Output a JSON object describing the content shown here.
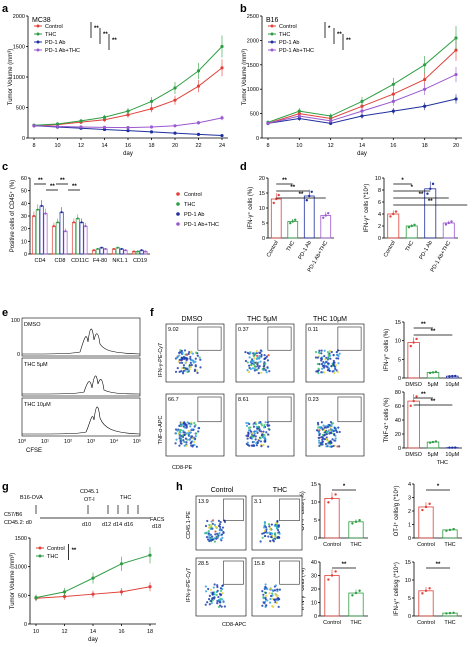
{
  "colors": {
    "control": "#e0413a",
    "thc": "#2e9e44",
    "pd1": "#1f2f9e",
    "pd1thc": "#9b59d0"
  },
  "chart_data": [
    {
      "panel": "a",
      "type": "line",
      "title": "MC38",
      "xlabel": "day",
      "ylabel": "Tumor Volume (mm³)",
      "x": [
        8,
        10,
        12,
        14,
        16,
        18,
        20,
        22,
        24
      ],
      "ylim": [
        0,
        2000
      ],
      "yticks": [
        0,
        500,
        1000,
        1500,
        2000
      ],
      "series": [
        {
          "name": "Control",
          "color": "#e0413a",
          "values": [
            200,
            220,
            260,
            300,
            380,
            480,
            620,
            850,
            1150
          ]
        },
        {
          "name": "THC",
          "color": "#2e9e44",
          "values": [
            210,
            230,
            280,
            340,
            440,
            600,
            820,
            1100,
            1500
          ]
        },
        {
          "name": "PD-1 Ab",
          "color": "#1f2f9e",
          "values": [
            200,
            180,
            160,
            140,
            120,
            100,
            80,
            60,
            40
          ]
        },
        {
          "name": "PD-1 Ab+THC",
          "color": "#9b59d0",
          "values": [
            200,
            190,
            180,
            175,
            170,
            180,
            200,
            250,
            330
          ]
        }
      ],
      "significance": [
        "**",
        "**",
        "**"
      ]
    },
    {
      "panel": "b",
      "type": "line",
      "title": "B16",
      "xlabel": "day",
      "ylabel": "Tumor Volume (mm³)",
      "x": [
        8,
        10,
        12,
        14,
        16,
        18,
        20
      ],
      "ylim": [
        0,
        2500
      ],
      "yticks": [
        0,
        500,
        1000,
        1500,
        2000,
        2500
      ],
      "series": [
        {
          "name": "Control",
          "color": "#e0413a",
          "values": [
            300,
            500,
            400,
            650,
            900,
            1200,
            1800
          ]
        },
        {
          "name": "THC",
          "color": "#2e9e44",
          "values": [
            320,
            550,
            450,
            750,
            1100,
            1500,
            2050
          ]
        },
        {
          "name": "PD-1 Ab",
          "color": "#1f2f9e",
          "values": [
            300,
            400,
            300,
            450,
            550,
            650,
            800
          ]
        },
        {
          "name": "PD-1 Ab+THC",
          "color": "#9b59d0",
          "values": [
            300,
            450,
            350,
            550,
            750,
            1000,
            1300
          ]
        }
      ],
      "significance": [
        "*",
        "**",
        "**"
      ]
    },
    {
      "panel": "c",
      "type": "bar",
      "ylabel": "Positive cells of CD45⁺ (%)",
      "categories": [
        "CD4",
        "CD8",
        "CD11C",
        "F4-80",
        "NK1.1",
        "CD19"
      ],
      "ylim": [
        0,
        60
      ],
      "yticks": [
        0,
        10,
        20,
        30,
        40,
        50,
        60
      ],
      "series": [
        {
          "name": "Control",
          "color": "#e0413a",
          "values": [
            30,
            22,
            25,
            3,
            4,
            2
          ]
        },
        {
          "name": "THC",
          "color": "#2e9e44",
          "values": [
            35,
            25,
            28,
            4,
            5,
            2
          ]
        },
        {
          "name": "PD-1 Ab",
          "color": "#1f2f9e",
          "values": [
            38,
            33,
            25,
            5,
            4,
            3
          ]
        },
        {
          "name": "PD-1 Ab+THC",
          "color": "#9b59d0",
          "values": [
            32,
            18,
            22,
            4,
            3,
            2
          ]
        }
      ],
      "significance": [
        "**",
        "**",
        "**",
        "**"
      ]
    },
    {
      "panel": "d1",
      "type": "bar",
      "ylabel": "IFN-γ⁺ cells (%)",
      "categories": [
        "Control",
        "THC",
        "PD-1 Ab",
        "PD-1 Ab+THC"
      ],
      "ylim": [
        0,
        20
      ],
      "yticks": [
        0,
        5,
        10,
        15,
        20
      ],
      "values": [
        13,
        5.5,
        14,
        7.5
      ],
      "significance": [
        "**",
        "**",
        "**"
      ]
    },
    {
      "panel": "d2",
      "type": "bar",
      "ylabel": "IFN-γ⁺ cells (*10⁴)",
      "categories": [
        "Control",
        "THC",
        "PD-1 Ab",
        "PD-1 Ab+THC"
      ],
      "ylim": [
        0,
        10
      ],
      "yticks": [
        0,
        2,
        4,
        6,
        8,
        10
      ],
      "values": [
        4,
        2,
        8.2,
        2.5
      ],
      "significance": [
        "*",
        "*",
        "**",
        "**"
      ]
    },
    {
      "panel": "f1",
      "type": "bar",
      "ylabel": "IFN-γ⁺ cells (%)",
      "categories": [
        "DMSO",
        "5μM",
        "10μM"
      ],
      "ylim": [
        0,
        15
      ],
      "yticks": [
        0,
        5,
        10,
        15
      ],
      "values": [
        9.5,
        1.5,
        0.5
      ],
      "significance": [
        "**",
        "**"
      ]
    },
    {
      "panel": "f2",
      "type": "bar",
      "ylabel": "TNF-α⁺ cells (%)",
      "categories": [
        "DMSO",
        "5μM",
        "10μM"
      ],
      "ylim": [
        0,
        80
      ],
      "yticks": [
        0,
        20,
        40,
        60,
        80
      ],
      "values": [
        67,
        8.5,
        0.5
      ],
      "significance": [
        "**",
        "**"
      ],
      "xgroup": "THC"
    },
    {
      "panel": "g",
      "type": "line",
      "xlabel": "day",
      "ylabel": "Tumor Volume (mm³)",
      "x": [
        10,
        12,
        14,
        16,
        18
      ],
      "ylim": [
        0,
        1500
      ],
      "yticks": [
        0,
        500,
        1000,
        1500
      ],
      "series": [
        {
          "name": "Control",
          "color": "#e0413a",
          "values": [
            450,
            480,
            520,
            560,
            650
          ]
        },
        {
          "name": "THC",
          "color": "#2e9e44",
          "values": [
            460,
            560,
            800,
            1050,
            1200
          ]
        }
      ],
      "significance": [
        "**"
      ]
    },
    {
      "panel": "h1",
      "type": "bar",
      "ylabel": "OT-I⁺ cells (%)",
      "categories": [
        "Control",
        "THC"
      ],
      "ylim": [
        0,
        15
      ],
      "yticks": [
        0,
        5,
        10,
        15
      ],
      "values": [
        11,
        4.5
      ],
      "significance": [
        "*"
      ]
    },
    {
      "panel": "h2",
      "type": "bar",
      "ylabel": "OT-I⁺ cells/g (*10⁴)",
      "categories": [
        "Control",
        "THC"
      ],
      "ylim": [
        0,
        4
      ],
      "yticks": [
        0,
        1,
        2,
        3,
        4
      ],
      "values": [
        2.3,
        0.6
      ],
      "significance": [
        "*"
      ]
    },
    {
      "panel": "h3",
      "type": "bar",
      "ylabel": "IFN-γ⁺ cells (%)",
      "categories": [
        "Control",
        "THC"
      ],
      "ylim": [
        0,
        40
      ],
      "yticks": [
        0,
        10,
        20,
        30,
        40
      ],
      "values": [
        30,
        17
      ],
      "significance": [
        "**"
      ]
    },
    {
      "panel": "h4",
      "type": "bar",
      "ylabel": "IFN-γ⁺ cells/g (*10⁴)",
      "categories": [
        "Control",
        "THC"
      ],
      "ylim": [
        0,
        15
      ],
      "yticks": [
        0,
        5,
        10,
        15
      ],
      "values": [
        7,
        0.8
      ],
      "significance": [
        "**"
      ]
    }
  ],
  "panels": {
    "a": "a",
    "b": "b",
    "c": "c",
    "d": "d",
    "e": "e",
    "f": "f",
    "g": "g",
    "h": "h"
  },
  "panel_e": {
    "labels": [
      "DMSO",
      "THC 5μM",
      "THC 10μM"
    ],
    "xlabel": "CFSE",
    "xticks": [
      "10⁰",
      "10¹",
      "10²",
      "10³",
      "10⁴",
      "10⁵"
    ],
    "yticks": [
      "0",
      "100"
    ]
  },
  "panel_f": {
    "col_titles": [
      "DMSO",
      "THC 5μM",
      "THC 10μM"
    ],
    "row1_y": "IFN-γ-PE-Cy7",
    "row2_y": "TNF-α-APC",
    "row_x": "CD8-PE",
    "row1_vals": [
      "9.02",
      "0.37",
      "0.11"
    ],
    "row2_vals": [
      "66.7",
      "8.61",
      "0.23"
    ]
  },
  "panel_g_schematic": {
    "model": "B16-OVA",
    "mouse_line1": "C57/B6",
    "mouse_line2": "CD45.2: d0",
    "transfer_line1": "CD45.1",
    "transfer_line2": "OT-I",
    "thc": "THC",
    "days": [
      "d10",
      "d12",
      "d14",
      "d16"
    ],
    "facs": "FACS",
    "facs_day": "d18"
  },
  "panel_h": {
    "col_titles": [
      "Control",
      "THC"
    ],
    "row1_y": "CD45.1-PE",
    "row1_vals": [
      "13.9",
      "3.1"
    ],
    "row2_y": "IFN-γ-PE-Cy7",
    "row2_x": "CD8-APC",
    "row2_vals": [
      "28.5",
      "15.8"
    ]
  }
}
